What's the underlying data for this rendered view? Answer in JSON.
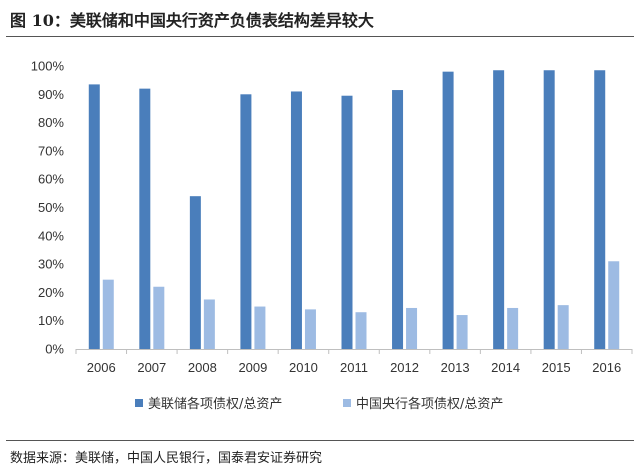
{
  "figure": {
    "title": "图 10：美联储和中国央行资产负债表结构差异较大",
    "source": "数据来源：美联储，中国人民银行，国泰君安证券研究"
  },
  "chart_data": {
    "type": "bar",
    "categories": [
      "2006",
      "2007",
      "2008",
      "2009",
      "2010",
      "2011",
      "2012",
      "2013",
      "2014",
      "2015",
      "2016"
    ],
    "series": [
      {
        "name": "美联储各项债权/总资产",
        "color": "#4a7ebb",
        "values": [
          93.5,
          92,
          54,
          90,
          91,
          89.5,
          91.5,
          98,
          98.5,
          98.5,
          98.5
        ]
      },
      {
        "name": "中国央行各项债权/总资产",
        "color": "#9dbbe3",
        "values": [
          24.5,
          22,
          17.5,
          15,
          14,
          13,
          14.5,
          12,
          14.5,
          15.5,
          31
        ]
      }
    ],
    "ylim": [
      0,
      100
    ],
    "yticks": [
      "0%",
      "10%",
      "20%",
      "30%",
      "40%",
      "50%",
      "60%",
      "70%",
      "80%",
      "90%",
      "100%"
    ],
    "legend_position": "bottom",
    "grid": false
  }
}
